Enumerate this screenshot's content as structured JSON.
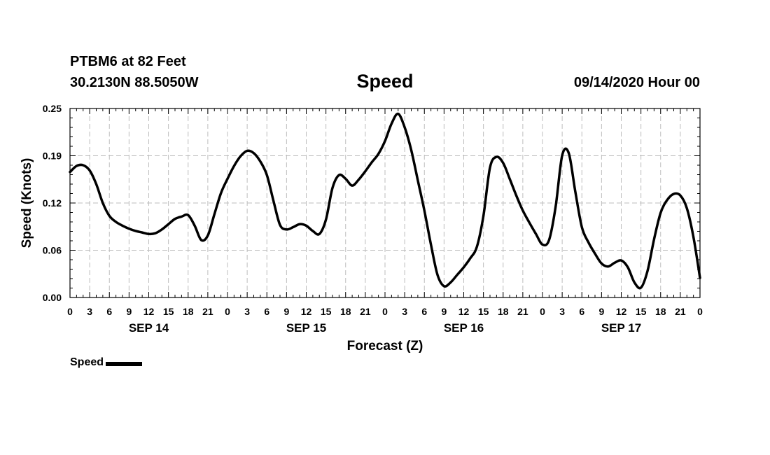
{
  "header": {
    "station": "PTBM6 at 82 Feet",
    "coords": "30.2130N 88.5050W",
    "title": "Speed",
    "datetime": "09/14/2020 Hour 00"
  },
  "legend": {
    "label": "Speed"
  },
  "chart_data": {
    "type": "line",
    "title": "Speed",
    "xlabel": "Forecast (Z)",
    "ylabel": "Speed (Knots)",
    "ylim": [
      0,
      0.25
    ],
    "yticks": [
      "0.00",
      "0.06",
      "0.12",
      "0.19",
      "0.25"
    ],
    "xlim": [
      0,
      96
    ],
    "xtick_labels": [
      "0",
      "3",
      "6",
      "9",
      "12",
      "15",
      "18",
      "21",
      "0",
      "3",
      "6",
      "9",
      "12",
      "15",
      "18",
      "21",
      "0",
      "3",
      "6",
      "9",
      "12",
      "15",
      "18",
      "21",
      "0",
      "3",
      "6",
      "9",
      "12",
      "15",
      "18",
      "21",
      "0"
    ],
    "day_labels": [
      {
        "label": "SEP 14",
        "hour": 12
      },
      {
        "label": "SEP 15",
        "hour": 36
      },
      {
        "label": "SEP 16",
        "hour": 60
      },
      {
        "label": "SEP 17",
        "hour": 84
      }
    ],
    "grid": true,
    "legend_position": "bottom-left",
    "series": [
      {
        "name": "Speed",
        "x": [
          0,
          1,
          2,
          3,
          4,
          5,
          6,
          7,
          8,
          9,
          10,
          11,
          12,
          13,
          14,
          15,
          16,
          17,
          18,
          19,
          20,
          21,
          22,
          23,
          24,
          25,
          26,
          27,
          28,
          29,
          30,
          31,
          32,
          33,
          34,
          35,
          36,
          37,
          38,
          39,
          40,
          41,
          42,
          43,
          44,
          45,
          46,
          47,
          48,
          49,
          50,
          51,
          52,
          53,
          54,
          55,
          56,
          57,
          58,
          59,
          60,
          61,
          62,
          63,
          64,
          65,
          66,
          67,
          68,
          69,
          70,
          71,
          72,
          73,
          74,
          75,
          76,
          77,
          78,
          79,
          80,
          81,
          82,
          83,
          84,
          85,
          86,
          87,
          88,
          89,
          90,
          91,
          92,
          93,
          94,
          95,
          96
        ],
        "y": [
          0.166,
          0.174,
          0.175,
          0.168,
          0.15,
          0.125,
          0.108,
          0.1,
          0.095,
          0.091,
          0.088,
          0.086,
          0.084,
          0.085,
          0.09,
          0.097,
          0.104,
          0.107,
          0.109,
          0.095,
          0.076,
          0.082,
          0.11,
          0.138,
          0.157,
          0.174,
          0.187,
          0.194,
          0.191,
          0.18,
          0.162,
          0.128,
          0.096,
          0.09,
          0.093,
          0.097,
          0.095,
          0.088,
          0.084,
          0.103,
          0.145,
          0.162,
          0.157,
          0.148,
          0.156,
          0.167,
          0.179,
          0.19,
          0.207,
          0.23,
          0.243,
          0.225,
          0.195,
          0.155,
          0.115,
          0.07,
          0.03,
          0.015,
          0.02,
          0.03,
          0.04,
          0.052,
          0.067,
          0.108,
          0.172,
          0.186,
          0.178,
          0.157,
          0.135,
          0.115,
          0.099,
          0.084,
          0.07,
          0.076,
          0.12,
          0.188,
          0.191,
          0.14,
          0.093,
          0.073,
          0.058,
          0.045,
          0.041,
          0.046,
          0.049,
          0.04,
          0.02,
          0.013,
          0.035,
          0.077,
          0.112,
          0.129,
          0.137,
          0.135,
          0.118,
          0.08,
          0.026
        ]
      }
    ]
  }
}
